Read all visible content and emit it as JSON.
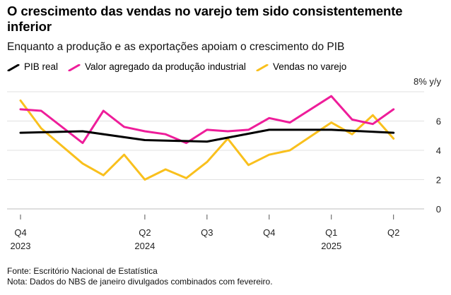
{
  "title": "O crescimento das vendas no varejo tem sido consistentemente inferior",
  "subtitle": "Enquanto a produção e as exportações apoiam o crescimento do PIB",
  "legend": [
    {
      "label": "PIB real",
      "color": "#000000"
    },
    {
      "label": "Valor agregado da produção industrial",
      "color": "#ee1d9a"
    },
    {
      "label": "Vendas no varejo",
      "color": "#f9c01d"
    }
  ],
  "footer": {
    "source": "Fonte: Escritório Nacional de Estatística",
    "note": "Nota: Dados do NBS de janeiro divulgados combinados com fevereiro."
  },
  "chart_data": {
    "type": "line",
    "x": [
      "2023-12",
      "2024-01",
      "2024-03",
      "2024-04",
      "2024-05",
      "2024-06",
      "2024-07",
      "2024-08",
      "2024-09",
      "2024-10",
      "2024-11",
      "2024-12",
      "2025-01",
      "2025-03",
      "2025-04",
      "2025-05",
      "2025-06",
      "2025-07"
    ],
    "xlim": [
      "2023-12",
      "2025-07"
    ],
    "ylim": [
      0,
      8
    ],
    "y_ticks": [
      0,
      2,
      4,
      6,
      8
    ],
    "y_unit_label": "% y/y",
    "x_ticks": [
      {
        "x": "2023-12",
        "label": "Q4",
        "year": "2023"
      },
      {
        "x": "2024-06",
        "label": "Q2",
        "year": "2024"
      },
      {
        "x": "2024-09",
        "label": "Q3",
        "year": ""
      },
      {
        "x": "2024-12",
        "label": "Q4",
        "year": ""
      },
      {
        "x": "2025-03",
        "label": "Q1",
        "year": "2025"
      },
      {
        "x": "2025-06",
        "label": "Q2",
        "year": ""
      }
    ],
    "grid": true,
    "legend_position": "top-left",
    "series": [
      {
        "name": "PIB real",
        "color": "#000000",
        "points": [
          [
            "2023-12",
            5.2
          ],
          [
            "2024-03",
            5.3
          ],
          [
            "2024-06",
            4.7
          ],
          [
            "2024-09",
            4.6
          ],
          [
            "2024-12",
            5.4
          ],
          [
            "2025-03",
            5.4
          ],
          [
            "2025-06",
            5.2
          ]
        ]
      },
      {
        "name": "Valor agregado da produção industrial",
        "color": "#ee1d9a",
        "points": [
          [
            "2023-12",
            6.8
          ],
          [
            "2024-01",
            6.7
          ],
          [
            "2024-03",
            4.5
          ],
          [
            "2024-04",
            6.7
          ],
          [
            "2024-05",
            5.6
          ],
          [
            "2024-06",
            5.3
          ],
          [
            "2024-07",
            5.1
          ],
          [
            "2024-08",
            4.5
          ],
          [
            "2024-09",
            5.4
          ],
          [
            "2024-10",
            5.3
          ],
          [
            "2024-11",
            5.4
          ],
          [
            "2024-12",
            6.2
          ],
          [
            "2025-01",
            5.9
          ],
          [
            "2025-03",
            7.7
          ],
          [
            "2025-04",
            6.1
          ],
          [
            "2025-05",
            5.8
          ],
          [
            "2025-06",
            6.8
          ]
        ]
      },
      {
        "name": "Vendas no varejo",
        "color": "#f9c01d",
        "points": [
          [
            "2023-12",
            7.4
          ],
          [
            "2024-01",
            5.5
          ],
          [
            "2024-03",
            3.1
          ],
          [
            "2024-04",
            2.3
          ],
          [
            "2024-05",
            3.7
          ],
          [
            "2024-06",
            2.0
          ],
          [
            "2024-07",
            2.7
          ],
          [
            "2024-08",
            2.1
          ],
          [
            "2024-09",
            3.2
          ],
          [
            "2024-10",
            4.8
          ],
          [
            "2024-11",
            3.0
          ],
          [
            "2024-12",
            3.7
          ],
          [
            "2025-01",
            4.0
          ],
          [
            "2025-03",
            5.9
          ],
          [
            "2025-04",
            5.1
          ],
          [
            "2025-05",
            6.4
          ],
          [
            "2025-06",
            4.8
          ]
        ]
      }
    ]
  }
}
